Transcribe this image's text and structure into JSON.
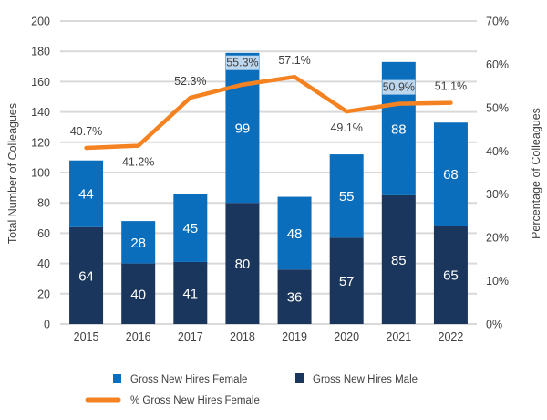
{
  "chart_data": {
    "type": "bar",
    "stacked": true,
    "title": "",
    "categories": [
      "2015",
      "2016",
      "2017",
      "2018",
      "2019",
      "2020",
      "2021",
      "2022"
    ],
    "series": [
      {
        "name": "Gross New Hires Male",
        "type": "bar",
        "axis": "left",
        "color": "#1B365D",
        "values": [
          64,
          40,
          41,
          80,
          36,
          57,
          85,
          65
        ]
      },
      {
        "name": "Gross New Hires Female",
        "type": "bar",
        "axis": "left",
        "color": "#0A6EBD",
        "values": [
          44,
          28,
          45,
          99,
          48,
          55,
          88,
          68
        ]
      },
      {
        "name": "% Gross New Hires Female",
        "type": "line",
        "axis": "right",
        "color": "#F58220",
        "values": [
          40.7,
          41.2,
          52.3,
          55.3,
          57.1,
          49.1,
          50.9,
          51.1
        ]
      }
    ],
    "pct_labels": [
      "40.7%",
      "41.2%",
      "52.3%",
      "55.3%",
      "57.1%",
      "49.1%",
      "50.9%",
      "51.1%"
    ],
    "pct_label_highlight": [
      false,
      false,
      false,
      true,
      false,
      false,
      true,
      false
    ],
    "ylabel": "Total Number of Colleagues",
    "ylabel_right": "Percentage of Colleagues",
    "ylim": [
      0,
      200
    ],
    "ylim_right": [
      0,
      70
    ],
    "yticks": [
      "0",
      "20",
      "40",
      "60",
      "80",
      "100",
      "120",
      "140",
      "160",
      "180",
      "200"
    ],
    "yticks_right": [
      "0%",
      "10%",
      "20%",
      "30%",
      "40%",
      "50%",
      "60%",
      "70%"
    ],
    "grid": true,
    "legend_position": "bottom",
    "legend": [
      {
        "label": "Gross New Hires Female",
        "marker": "square",
        "color": "#0A6EBD"
      },
      {
        "label": "Gross New Hires Male",
        "marker": "square",
        "color": "#1B365D"
      },
      {
        "label": "% Gross New Hires Female",
        "marker": "line",
        "color": "#F58220"
      }
    ]
  }
}
